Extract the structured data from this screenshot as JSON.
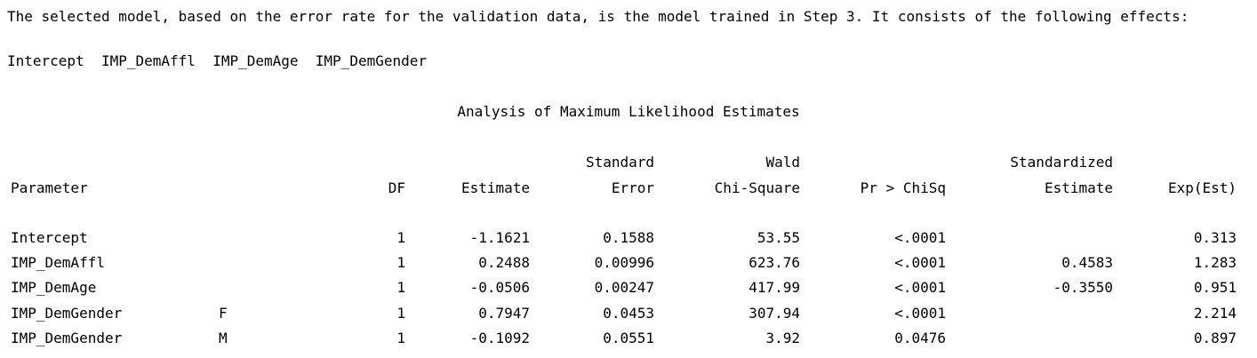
{
  "summary": "The selected model, based on the error rate for the validation data, is the model trained in Step 3. It consists of the following effects:",
  "effects": "Intercept  IMP_DemAffl  IMP_DemAge  IMP_DemGender",
  "table_title": "Analysis of Maximum Likelihood Estimates",
  "headers": {
    "parameter": "Parameter",
    "df": "DF",
    "estimate": "Estimate",
    "se_top": "Standard",
    "se_bottom": "Error",
    "wald_top": "Wald",
    "wald_bottom": "Chi-Square",
    "pr": "Pr > ChiSq",
    "std_top": "Standardized",
    "std_bottom": "Estimate",
    "exp": "Exp(Est)"
  },
  "rows": [
    {
      "parameter": "Intercept",
      "level": "",
      "df": "1",
      "estimate": "-1.1621",
      "se": "0.1588",
      "wald": "53.55",
      "pr": "<.0001",
      "std": "",
      "exp": "0.313"
    },
    {
      "parameter": "IMP_DemAffl",
      "level": "",
      "df": "1",
      "estimate": "0.2488",
      "se": "0.00996",
      "wald": "623.76",
      "pr": "<.0001",
      "std": "0.4583",
      "exp": "1.283"
    },
    {
      "parameter": "IMP_DemAge",
      "level": "",
      "df": "1",
      "estimate": "-0.0506",
      "se": "0.00247",
      "wald": "417.99",
      "pr": "<.0001",
      "std": "-0.3550",
      "exp": "0.951"
    },
    {
      "parameter": "IMP_DemGender",
      "level": "F",
      "df": "1",
      "estimate": "0.7947",
      "se": "0.0453",
      "wald": "307.94",
      "pr": "<.0001",
      "std": "",
      "exp": "2.214"
    },
    {
      "parameter": "IMP_DemGender",
      "level": "M",
      "df": "1",
      "estimate": "-0.1092",
      "se": "0.0551",
      "wald": "3.92",
      "pr": "0.0476",
      "std": "",
      "exp": "0.897"
    }
  ]
}
